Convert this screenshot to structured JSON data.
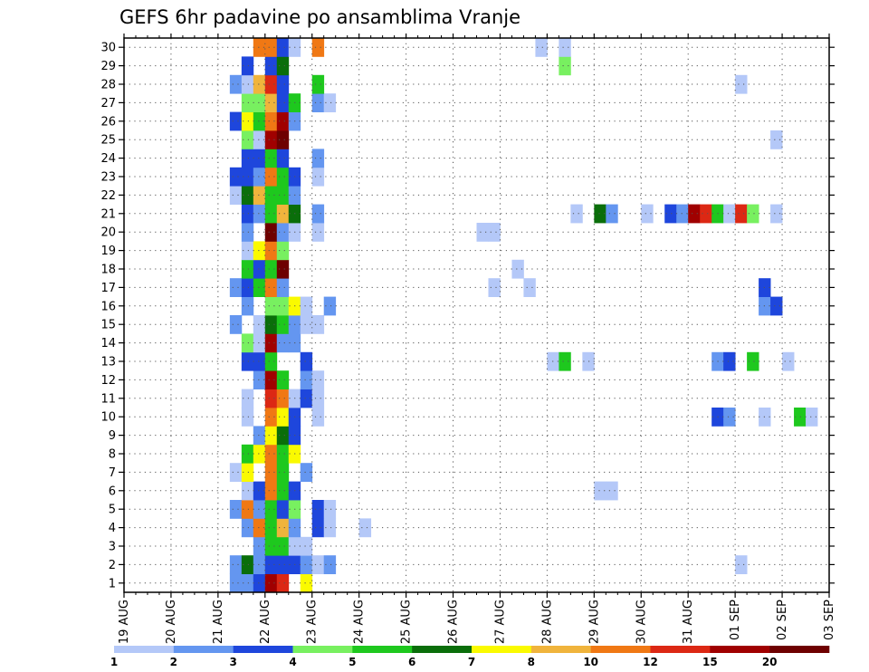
{
  "chart_data": {
    "type": "heatmap",
    "title": "GEFS 6hr padavine po ansamblima Vranje",
    "xlabel": "",
    "ylabel": "",
    "x_tick_labels": [
      "19 AUG",
      "20 AUG",
      "21 AUG",
      "22 AUG",
      "23 AUG",
      "24 AUG",
      "25 AUG",
      "26 AUG",
      "27 AUG",
      "28 AUG",
      "29 AUG",
      "30 AUG",
      "31 AUG",
      "01 SEP",
      "02 SEP",
      "03 SEP"
    ],
    "y_tick_labels": [
      "1",
      "2",
      "3",
      "4",
      "5",
      "6",
      "7",
      "8",
      "9",
      "10",
      "11",
      "12",
      "13",
      "14",
      "15",
      "16",
      "17",
      "18",
      "19",
      "20",
      "21",
      "22",
      "23",
      "24",
      "25",
      "26",
      "27",
      "28",
      "29",
      "30"
    ],
    "x_range_days": [
      0,
      15
    ],
    "y_range": [
      0,
      30
    ],
    "time_step_hours": 6,
    "grid": "dotted",
    "colorbar": {
      "labels": [
        "1",
        "2",
        "3",
        "4",
        "5",
        "6",
        "7",
        "8",
        "10",
        "12",
        "15",
        "20"
      ],
      "colors": [
        "#b4c8f8",
        "#6496f0",
        "#1e46dc",
        "#78f060",
        "#1ec81e",
        "#0a6e0a",
        "#fafa00",
        "#f0b43c",
        "#f07814",
        "#dc2814",
        "#a00000",
        "#6e0000"
      ]
    },
    "cells": [
      [
        1,
        9,
        2
      ],
      [
        1,
        10,
        2
      ],
      [
        1,
        11,
        3
      ],
      [
        1,
        12,
        11
      ],
      [
        1,
        13,
        10
      ],
      [
        1,
        15,
        7
      ],
      [
        2,
        9,
        2
      ],
      [
        2,
        10,
        6
      ],
      [
        2,
        11,
        2
      ],
      [
        2,
        12,
        3
      ],
      [
        2,
        13,
        3
      ],
      [
        2,
        14,
        3
      ],
      [
        2,
        15,
        2
      ],
      [
        2,
        16,
        1
      ],
      [
        2,
        17,
        2
      ],
      [
        2,
        52,
        1
      ],
      [
        3,
        11,
        2
      ],
      [
        3,
        12,
        5
      ],
      [
        3,
        13,
        5
      ],
      [
        3,
        14,
        1
      ],
      [
        3,
        15,
        1
      ],
      [
        4,
        10,
        2
      ],
      [
        4,
        11,
        9
      ],
      [
        4,
        12,
        5
      ],
      [
        4,
        13,
        8
      ],
      [
        4,
        14,
        2
      ],
      [
        4,
        16,
        3
      ],
      [
        4,
        17,
        1
      ],
      [
        4,
        20,
        1
      ],
      [
        5,
        9,
        2
      ],
      [
        5,
        10,
        9
      ],
      [
        5,
        11,
        2
      ],
      [
        5,
        12,
        5
      ],
      [
        5,
        13,
        3
      ],
      [
        5,
        14,
        4
      ],
      [
        5,
        16,
        3
      ],
      [
        5,
        17,
        1
      ],
      [
        6,
        10,
        1
      ],
      [
        6,
        11,
        3
      ],
      [
        6,
        12,
        9
      ],
      [
        6,
        13,
        5
      ],
      [
        6,
        14,
        3
      ],
      [
        6,
        40,
        1
      ],
      [
        6,
        41,
        1
      ],
      [
        7,
        9,
        1
      ],
      [
        7,
        10,
        7
      ],
      [
        7,
        12,
        9
      ],
      [
        7,
        13,
        5
      ],
      [
        7,
        15,
        2
      ],
      [
        8,
        10,
        5
      ],
      [
        8,
        11,
        7
      ],
      [
        8,
        12,
        9
      ],
      [
        8,
        13,
        5
      ],
      [
        8,
        14,
        7
      ],
      [
        9,
        11,
        2
      ],
      [
        9,
        12,
        7
      ],
      [
        9,
        13,
        6
      ],
      [
        9,
        14,
        3
      ],
      [
        10,
        10,
        1
      ],
      [
        10,
        12,
        9
      ],
      [
        10,
        13,
        7
      ],
      [
        10,
        14,
        3
      ],
      [
        10,
        16,
        1
      ],
      [
        10,
        50,
        3
      ],
      [
        10,
        51,
        2
      ],
      [
        10,
        54,
        1
      ],
      [
        10,
        57,
        5
      ],
      [
        10,
        58,
        1
      ],
      [
        11,
        10,
        1
      ],
      [
        11,
        12,
        10
      ],
      [
        11,
        13,
        9
      ],
      [
        11,
        14,
        1
      ],
      [
        11,
        15,
        3
      ],
      [
        11,
        16,
        1
      ],
      [
        12,
        11,
        2
      ],
      [
        12,
        12,
        11
      ],
      [
        12,
        13,
        5
      ],
      [
        12,
        15,
        2
      ],
      [
        12,
        16,
        1
      ],
      [
        13,
        10,
        3
      ],
      [
        13,
        11,
        3
      ],
      [
        13,
        12,
        5
      ],
      [
        13,
        15,
        3
      ],
      [
        13,
        36,
        1
      ],
      [
        13,
        37,
        5
      ],
      [
        13,
        39,
        1
      ],
      [
        13,
        50,
        2
      ],
      [
        13,
        51,
        3
      ],
      [
        13,
        53,
        5
      ],
      [
        13,
        56,
        1
      ],
      [
        14,
        10,
        4
      ],
      [
        14,
        11,
        1
      ],
      [
        14,
        12,
        11
      ],
      [
        14,
        13,
        2
      ],
      [
        14,
        14,
        2
      ],
      [
        15,
        9,
        2
      ],
      [
        15,
        11,
        1
      ],
      [
        15,
        12,
        6
      ],
      [
        15,
        13,
        5
      ],
      [
        15,
        14,
        2
      ],
      [
        15,
        15,
        1
      ],
      [
        15,
        16,
        1
      ],
      [
        16,
        10,
        2
      ],
      [
        16,
        12,
        4
      ],
      [
        16,
        13,
        4
      ],
      [
        16,
        14,
        7
      ],
      [
        16,
        15,
        1
      ],
      [
        16,
        17,
        2
      ],
      [
        16,
        54,
        2
      ],
      [
        16,
        55,
        3
      ],
      [
        17,
        9,
        2
      ],
      [
        17,
        10,
        3
      ],
      [
        17,
        11,
        5
      ],
      [
        17,
        12,
        9
      ],
      [
        17,
        13,
        2
      ],
      [
        17,
        31,
        1
      ],
      [
        17,
        34,
        1
      ],
      [
        17,
        54,
        3
      ],
      [
        18,
        10,
        5
      ],
      [
        18,
        11,
        3
      ],
      [
        18,
        12,
        5
      ],
      [
        18,
        13,
        12
      ],
      [
        18,
        33,
        1
      ],
      [
        19,
        10,
        1
      ],
      [
        19,
        11,
        7
      ],
      [
        19,
        12,
        9
      ],
      [
        19,
        13,
        4
      ],
      [
        20,
        10,
        2
      ],
      [
        20,
        12,
        12
      ],
      [
        20,
        13,
        2
      ],
      [
        20,
        14,
        1
      ],
      [
        20,
        16,
        1
      ],
      [
        20,
        30,
        1
      ],
      [
        20,
        31,
        1
      ],
      [
        21,
        10,
        3
      ],
      [
        21,
        11,
        2
      ],
      [
        21,
        12,
        5
      ],
      [
        21,
        13,
        8
      ],
      [
        21,
        14,
        6
      ],
      [
        21,
        16,
        2
      ],
      [
        21,
        38,
        1
      ],
      [
        21,
        40,
        6
      ],
      [
        21,
        41,
        2
      ],
      [
        21,
        44,
        1
      ],
      [
        21,
        46,
        3
      ],
      [
        21,
        47,
        2
      ],
      [
        21,
        48,
        11
      ],
      [
        21,
        49,
        10
      ],
      [
        21,
        50,
        5
      ],
      [
        21,
        51,
        1
      ],
      [
        21,
        52,
        10
      ],
      [
        21,
        53,
        4
      ],
      [
        21,
        55,
        1
      ],
      [
        22,
        9,
        1
      ],
      [
        22,
        10,
        6
      ],
      [
        22,
        11,
        8
      ],
      [
        22,
        12,
        5
      ],
      [
        22,
        13,
        5
      ],
      [
        22,
        14,
        2
      ],
      [
        23,
        9,
        3
      ],
      [
        23,
        10,
        3
      ],
      [
        23,
        11,
        2
      ],
      [
        23,
        12,
        9
      ],
      [
        23,
        13,
        5
      ],
      [
        23,
        14,
        3
      ],
      [
        23,
        16,
        1
      ],
      [
        24,
        10,
        3
      ],
      [
        24,
        11,
        3
      ],
      [
        24,
        12,
        5
      ],
      [
        24,
        13,
        3
      ],
      [
        24,
        16,
        2
      ],
      [
        25,
        10,
        4
      ],
      [
        25,
        11,
        1
      ],
      [
        25,
        12,
        11
      ],
      [
        25,
        13,
        12
      ],
      [
        25,
        55,
        1
      ],
      [
        26,
        9,
        3
      ],
      [
        26,
        10,
        7
      ],
      [
        26,
        11,
        5
      ],
      [
        26,
        12,
        9
      ],
      [
        26,
        13,
        11
      ],
      [
        26,
        14,
        2
      ],
      [
        27,
        10,
        4
      ],
      [
        27,
        11,
        4
      ],
      [
        27,
        12,
        8
      ],
      [
        27,
        13,
        3
      ],
      [
        27,
        14,
        5
      ],
      [
        27,
        16,
        2
      ],
      [
        27,
        17,
        1
      ],
      [
        28,
        9,
        2
      ],
      [
        28,
        10,
        1
      ],
      [
        28,
        11,
        8
      ],
      [
        28,
        12,
        10
      ],
      [
        28,
        13,
        3
      ],
      [
        28,
        16,
        5
      ],
      [
        28,
        52,
        1
      ],
      [
        29,
        10,
        3
      ],
      [
        29,
        12,
        3
      ],
      [
        29,
        13,
        6
      ],
      [
        29,
        37,
        4
      ],
      [
        30,
        11,
        9
      ],
      [
        30,
        12,
        9
      ],
      [
        30,
        13,
        3
      ],
      [
        30,
        14,
        1
      ],
      [
        30,
        16,
        9
      ],
      [
        30,
        35,
        1
      ],
      [
        30,
        37,
        1
      ]
    ]
  }
}
